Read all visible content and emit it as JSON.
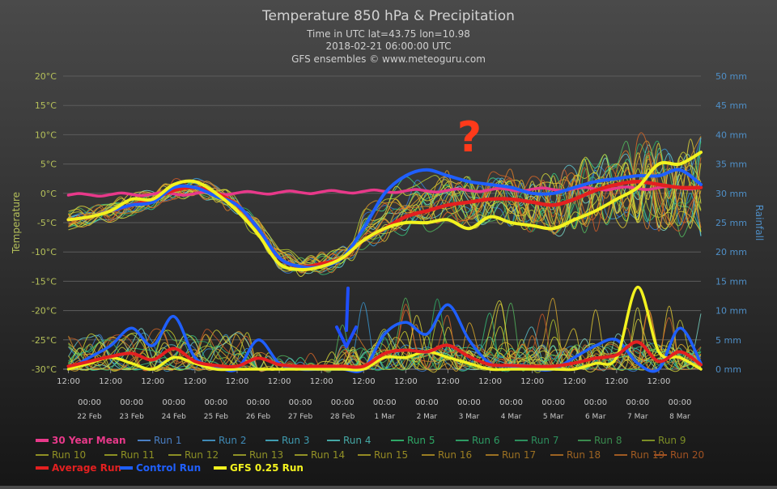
{
  "chart_data": {
    "type": "line",
    "title": "Temperature 850 hPa & Precipitation",
    "subtitle": [
      "Time in UTC lat=43.75 lon=10.98",
      "2018-02-21 06:00:00 UTC",
      "GFS ensembles © www.meteoguru.com"
    ],
    "ylabel_left": "Temperature",
    "ylabel_right": "Rainfall",
    "ylim_left": [
      -30,
      20
    ],
    "ylim_right": [
      0,
      50
    ],
    "y_ticks_left": [
      "20°C",
      "15°C",
      "10°C",
      "5°C",
      "0°C",
      "-5°C",
      "-10°C",
      "-15°C",
      "-20°C",
      "-25°C",
      "-30°C"
    ],
    "y_ticks_right": [
      "50 mm",
      "45 mm",
      "40 mm",
      "35 mm",
      "30 mm",
      "25 mm",
      "20 mm",
      "15 mm",
      "10 mm",
      "5 mm",
      "0 mm"
    ],
    "x_ticks_time": [
      "12:00",
      "12:00",
      "12:00",
      "12:00",
      "12:00",
      "12:00",
      "12:00",
      "12:00",
      "12:00",
      "12:00",
      "12:00",
      "12:00",
      "12:00",
      "12:00",
      "12:00"
    ],
    "x_ticks_midnight": [
      "00:00",
      "00:00",
      "00:00",
      "00:00",
      "00:00",
      "00:00",
      "00:00",
      "00:00",
      "00:00",
      "00:00",
      "00:00",
      "00:00",
      "00:00",
      "00:00",
      "00:00"
    ],
    "x_ticks_dates": [
      "22 Feb",
      "23 Feb",
      "24 Feb",
      "25 Feb",
      "26 Feb",
      "27 Feb",
      "28 Feb",
      "1 Mar",
      "2 Mar",
      "3 Mar",
      "4 Mar",
      "5 Mar",
      "6 Mar",
      "7 Mar",
      "8 Mar"
    ],
    "x_range_days": [
      -0.125,
      15.0
    ],
    "temperature_series": {
      "mean30": {
        "name": "30 Year Mean",
        "x": [
          0,
          15
        ],
        "values": [
          -0.3,
          1.0
        ]
      },
      "average": {
        "name": "Average Run",
        "x": [
          0,
          0.5,
          1,
          1.5,
          2,
          2.5,
          3,
          3.5,
          4,
          4.5,
          5,
          5.5,
          6,
          6.5,
          7,
          7.5,
          8,
          8.5,
          9,
          9.5,
          10,
          10.5,
          11,
          11.5,
          12,
          12.5,
          13,
          13.5,
          14,
          14.5,
          15
        ],
        "values": [
          -4.5,
          -4,
          -3,
          -2,
          -1,
          0.5,
          1,
          0,
          -2,
          -6,
          -11,
          -12.5,
          -12,
          -11,
          -8,
          -6,
          -4,
          -3,
          -2,
          -1.5,
          -1,
          -1,
          -1.5,
          -2,
          -1,
          0.5,
          1.5,
          2,
          1.5,
          1,
          1
        ]
      },
      "control": {
        "name": "Control Run",
        "x": [
          0,
          0.5,
          1,
          1.5,
          2,
          2.5,
          3,
          3.5,
          4,
          4.5,
          5,
          5.5,
          6,
          6.5,
          7,
          7.5,
          8,
          8.5,
          9,
          9.5,
          10,
          10.5,
          11,
          11.5,
          12,
          12.5,
          13,
          13.5,
          14,
          14.5,
          15
        ],
        "values": [
          -4.5,
          -4,
          -3,
          -2,
          -1.5,
          1,
          1,
          -0.5,
          -2,
          -6,
          -11,
          -12.5,
          -12.5,
          -11,
          -6,
          0,
          3,
          4,
          3,
          2,
          1.5,
          1,
          0,
          0,
          1,
          2,
          2.5,
          3,
          3,
          4,
          1.5
        ]
      },
      "gfs": {
        "name": "GFS 0.25 Run",
        "x": [
          0,
          0.5,
          1,
          1.5,
          2,
          2.5,
          3,
          3.5,
          4,
          4.5,
          5,
          5.5,
          6,
          6.5,
          7,
          7.5,
          8,
          8.5,
          9,
          9.5,
          10,
          10.5,
          11,
          11.5,
          12,
          12.5,
          13,
          13.5,
          14,
          14.5,
          15
        ],
        "values": [
          -4.5,
          -4,
          -3,
          -1,
          -1,
          1.5,
          2,
          0,
          -3,
          -7,
          -12,
          -13,
          -12.5,
          -11,
          -8,
          -6,
          -5,
          -5,
          -4.5,
          -6,
          -4,
          -5,
          -5.5,
          -6,
          -4.5,
          -3,
          -1,
          1,
          5,
          5,
          7
        ]
      }
    },
    "precipitation_series": {
      "control": {
        "name": "Control Run",
        "x": [
          0,
          0.5,
          1,
          1.5,
          2,
          2.5,
          3,
          3.5,
          4,
          4.5,
          5,
          5.5,
          6,
          6.5,
          7,
          7.5,
          8,
          8.5,
          9,
          9.5,
          10,
          10.5,
          11,
          11.5,
          12,
          12.5,
          13,
          13.5,
          14,
          14.5,
          15
        ],
        "values": [
          0,
          2,
          4,
          7,
          4,
          9,
          2,
          0.5,
          0,
          5,
          1,
          0,
          0,
          0,
          0,
          6,
          8,
          6,
          11,
          5,
          1,
          0.5,
          0,
          0,
          2,
          4,
          5,
          1,
          0,
          7,
          1
        ]
      },
      "gfs": {
        "name": "GFS 0.25 Run",
        "x": [
          0,
          0.5,
          1,
          1.5,
          2,
          2.5,
          3,
          3.5,
          4,
          4.5,
          5,
          5.5,
          6,
          6.5,
          7,
          7.5,
          8,
          8.5,
          9,
          9.5,
          10,
          10.5,
          11,
          11.5,
          12,
          12.5,
          13,
          13.5,
          14,
          14.5,
          15
        ],
        "values": [
          0,
          1,
          2,
          1,
          0,
          2,
          1,
          0,
          0,
          0,
          0,
          0,
          0,
          0,
          0,
          2,
          2,
          3,
          2,
          1,
          0,
          0,
          0,
          0,
          0,
          1,
          2,
          14,
          3,
          2,
          0
        ]
      }
    },
    "legend": [
      {
        "name": "30 Year Mean",
        "color": "#e8398a",
        "bold": true
      },
      {
        "name": "Run 1",
        "color": "#4a7fc4"
      },
      {
        "name": "Run 2",
        "color": "#3f8ab6"
      },
      {
        "name": "Run 3",
        "color": "#3f9cb1"
      },
      {
        "name": "Run 4",
        "color": "#45a8a5"
      },
      {
        "name": "Run 5",
        "color": "#2ea866"
      },
      {
        "name": "Run 6",
        "color": "#2d9b64"
      },
      {
        "name": "Run 7",
        "color": "#2c8e5d"
      },
      {
        "name": "Run 8",
        "color": "#3a8b4e"
      },
      {
        "name": "Run 9",
        "color": "#7c8e26"
      },
      {
        "name": "Run 10",
        "color": "#8f8f24"
      },
      {
        "name": "Run 11",
        "color": "#8d9023"
      },
      {
        "name": "Run 12",
        "color": "#8b8f25"
      },
      {
        "name": "Run 13",
        "color": "#909227"
      },
      {
        "name": "Run 14",
        "color": "#939126"
      },
      {
        "name": "Run 15",
        "color": "#958a23"
      },
      {
        "name": "Run 16",
        "color": "#9a7d22"
      },
      {
        "name": "Run 17",
        "color": "#9b7022"
      },
      {
        "name": "Run 18",
        "color": "#9c6322"
      },
      {
        "name": "Run 19",
        "color": "#9f5a22"
      },
      {
        "name": "Run 20",
        "color": "#a25222"
      },
      {
        "name": "Average Run",
        "color": "#e32020",
        "bold": true
      },
      {
        "name": "Control Run",
        "color": "#1f5fff",
        "bold": true
      },
      {
        "name": "GFS 0.25 Run",
        "color": "#f2f21f",
        "bold": true
      }
    ],
    "annotations": [
      {
        "type": "text",
        "text": "?",
        "color": "#ff3a1a"
      },
      {
        "type": "arrow",
        "direction": "down",
        "color": "#1f4fff",
        "near": "28 Feb"
      }
    ]
  },
  "colors": {
    "title": "#d2d2d2",
    "subtitle": "#cfcfcf",
    "left_axis": "#b5c05a",
    "right_axis": "#4f8fc7",
    "x_axis": "#c8c8c8",
    "grid": "#5c5c5c",
    "mean": "#e8398a",
    "average": "#e32020",
    "control": "#1f5fff",
    "gfs": "#f2f21f"
  }
}
